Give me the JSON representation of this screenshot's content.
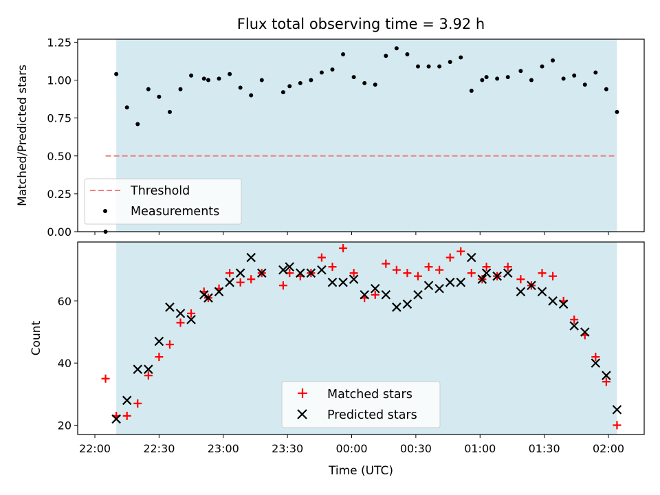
{
  "chart_data": [
    {
      "type": "scatter",
      "title": "Flux total observing time = 3.92 h",
      "xlabel": "",
      "ylabel": "Matched/Predicted stars",
      "ylim": [
        0,
        1.27
      ],
      "yticks": [
        "0.00",
        "0.25",
        "0.50",
        "0.75",
        "1.00",
        "1.25"
      ],
      "shaded_span": [
        "22:10",
        "02:04"
      ],
      "shaded_color": "#d4eaf0",
      "legend": {
        "placement": "lower-left",
        "entries": [
          "Threshold",
          "Measurements"
        ]
      },
      "threshold": {
        "name": "Threshold",
        "value": 0.5,
        "x_start": "22:05",
        "x_end": "02:04",
        "color": "#f08080",
        "style": "dashed"
      },
      "series": [
        {
          "name": "Measurements",
          "color": "#000000",
          "marker": "dot",
          "x": [
            "22:05",
            "22:10",
            "22:15",
            "22:20",
            "22:25",
            "22:30",
            "22:35",
            "22:40",
            "22:45",
            "22:51",
            "22:53",
            "22:58",
            "23:03",
            "23:08",
            "23:13",
            "23:18",
            "23:28",
            "23:31",
            "23:36",
            "23:41",
            "23:46",
            "23:51",
            "23:56",
            "00:01",
            "00:06",
            "00:11",
            "00:16",
            "00:21",
            "00:26",
            "00:31",
            "00:36",
            "00:41",
            "00:46",
            "00:51",
            "00:56",
            "01:01",
            "01:03",
            "01:08",
            "01:13",
            "01:19",
            "01:24",
            "01:29",
            "01:34",
            "01:39",
            "01:44",
            "01:49",
            "01:54",
            "01:59",
            "02:04"
          ],
          "values": [
            0.0,
            1.04,
            0.82,
            0.71,
            0.94,
            0.89,
            0.79,
            0.94,
            1.03,
            1.01,
            1.0,
            1.01,
            1.04,
            0.95,
            0.9,
            1.0,
            0.92,
            0.96,
            0.98,
            1.0,
            1.05,
            1.07,
            1.17,
            1.02,
            0.98,
            0.97,
            1.16,
            1.21,
            1.17,
            1.09,
            1.09,
            1.09,
            1.12,
            1.15,
            0.93,
            1.0,
            1.02,
            1.01,
            1.02,
            1.06,
            1.0,
            1.09,
            1.13,
            1.01,
            1.03,
            0.97,
            1.05,
            0.94,
            0.79
          ]
        }
      ]
    },
    {
      "type": "scatter",
      "title": "",
      "xlabel": "Time (UTC)",
      "ylabel": "Count",
      "ylim": [
        17,
        79
      ],
      "yticks": [
        "20",
        "40",
        "60"
      ],
      "xticks": [
        "22:00",
        "22:30",
        "23:00",
        "23:30",
        "00:00",
        "00:30",
        "01:00",
        "01:30",
        "02:00"
      ],
      "legend": {
        "placement": "lower-center",
        "entries": [
          "Matched stars",
          "Predicted stars"
        ]
      },
      "series": [
        {
          "name": "Matched stars",
          "color": "#ff0000",
          "marker": "plus",
          "x": [
            "22:05",
            "22:10",
            "22:15",
            "22:20",
            "22:25",
            "22:30",
            "22:35",
            "22:40",
            "22:45",
            "22:51",
            "22:53",
            "22:58",
            "23:03",
            "23:08",
            "23:13",
            "23:18",
            "23:28",
            "23:31",
            "23:36",
            "23:41",
            "23:46",
            "23:51",
            "23:56",
            "00:01",
            "00:06",
            "00:11",
            "00:16",
            "00:21",
            "00:26",
            "00:31",
            "00:36",
            "00:41",
            "00:46",
            "00:51",
            "00:56",
            "01:01",
            "01:03",
            "01:08",
            "01:13",
            "01:19",
            "01:24",
            "01:29",
            "01:34",
            "01:39",
            "01:44",
            "01:49",
            "01:54",
            "01:59",
            "02:04"
          ],
          "values": [
            35,
            23,
            23,
            27,
            36,
            42,
            46,
            53,
            56,
            63,
            61,
            64,
            69,
            66,
            67,
            69,
            65,
            69,
            68,
            69,
            74,
            71,
            77,
            69,
            61,
            62,
            72,
            70,
            69,
            68,
            71,
            70,
            74,
            76,
            69,
            67,
            71,
            68,
            71,
            67,
            65,
            69,
            68,
            60,
            54,
            49,
            42,
            34,
            20
          ]
        },
        {
          "name": "Predicted stars",
          "color": "#000000",
          "marker": "x",
          "x": [
            "22:10",
            "22:15",
            "22:20",
            "22:25",
            "22:30",
            "22:35",
            "22:40",
            "22:45",
            "22:51",
            "22:53",
            "22:58",
            "23:03",
            "23:08",
            "23:13",
            "23:18",
            "23:28",
            "23:31",
            "23:36",
            "23:41",
            "23:46",
            "23:51",
            "23:56",
            "00:01",
            "00:06",
            "00:11",
            "00:16",
            "00:21",
            "00:26",
            "00:31",
            "00:36",
            "00:41",
            "00:46",
            "00:51",
            "00:56",
            "01:01",
            "01:03",
            "01:08",
            "01:13",
            "01:19",
            "01:24",
            "01:29",
            "01:34",
            "01:39",
            "01:44",
            "01:49",
            "01:54",
            "01:59",
            "02:04"
          ],
          "values": [
            22,
            28,
            38,
            38,
            47,
            58,
            56,
            54,
            62,
            61,
            63,
            66,
            69,
            74,
            69,
            70,
            71,
            69,
            69,
            70,
            66,
            66,
            67,
            62,
            64,
            62,
            58,
            59,
            62,
            65,
            64,
            66,
            66,
            74,
            67,
            69,
            68,
            69,
            63,
            65,
            63,
            60,
            59,
            52,
            50,
            40,
            36,
            25
          ]
        }
      ]
    }
  ]
}
